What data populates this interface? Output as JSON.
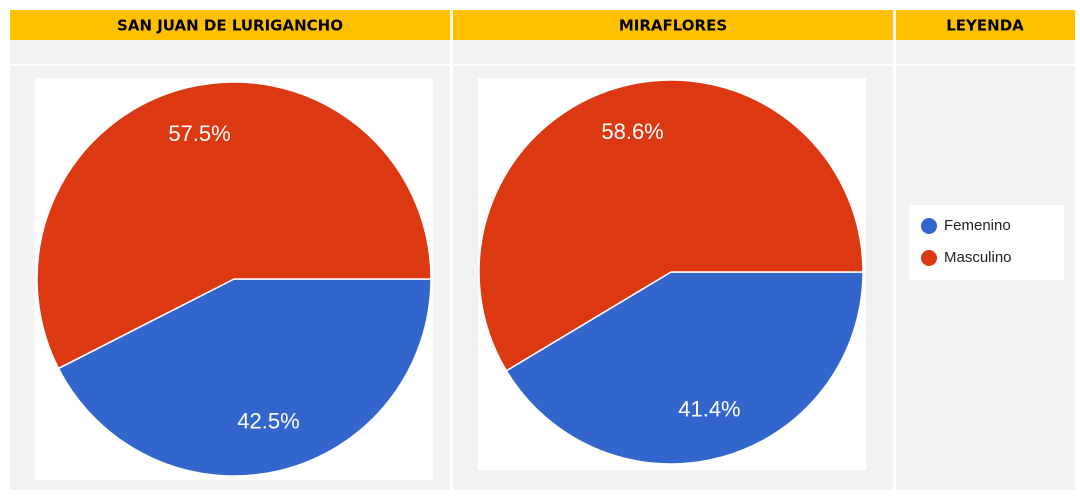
{
  "chart_data": [
    {
      "type": "pie",
      "title": "SAN JUAN DE LURIGANCHO",
      "categories": [
        "Femenino",
        "Masculino"
      ],
      "values": [
        42.5,
        57.5
      ],
      "value_labels": [
        "42.5%",
        "57.5%"
      ],
      "colors": [
        "#3366cc",
        "#dc3912"
      ]
    },
    {
      "type": "pie",
      "title": "MIRAFLORES",
      "categories": [
        "Femenino",
        "Masculino"
      ],
      "values": [
        41.4,
        58.6
      ],
      "value_labels": [
        "41.4%",
        "58.6%"
      ],
      "colors": [
        "#3366cc",
        "#dc3912"
      ]
    }
  ],
  "legend": {
    "title": "LEYENDA"
  }
}
